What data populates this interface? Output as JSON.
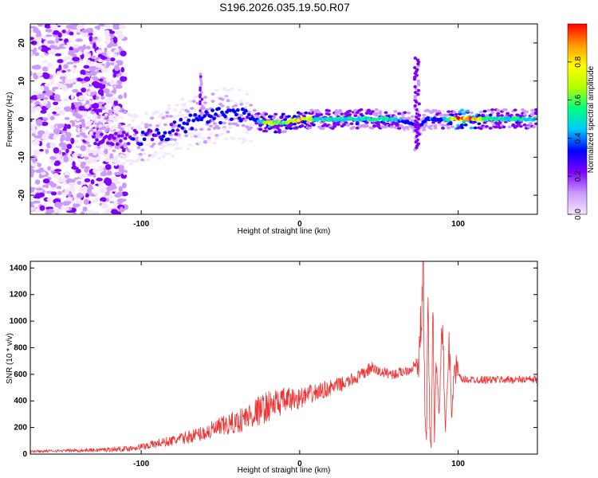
{
  "title": "S196.2026.035.19.50.R07",
  "chart_data": [
    {
      "type": "heatmap",
      "xlabel": "Height of straight line (km)",
      "ylabel": "Frequency (Hz)",
      "xlim": [
        -170,
        150
      ],
      "ylim": [
        -25,
        25
      ],
      "xticks": [
        -100,
        0,
        100
      ],
      "yticks": [
        -20,
        -10,
        0,
        10,
        20
      ],
      "colorbar": {
        "label": "Normalized spectral amplitude",
        "range": [
          0,
          1
        ],
        "ticks": [
          0.0,
          0.2,
          0.4,
          0.6,
          0.8
        ],
        "tick_labels": [
          "0.0",
          "0.2",
          "0.4",
          "0.6",
          "0.8"
        ],
        "colormap": [
          "#f4e6ff",
          "#cc99ff",
          "#7f00ff",
          "#0000ff",
          "#00c8ff",
          "#00ff80",
          "#b4ff00",
          "#ffff00",
          "#ff9900",
          "#ff0000"
        ]
      },
      "ridge": {
        "x": [
          -125,
          -110,
          -100,
          -90,
          -80,
          -70,
          -60,
          -50,
          -40,
          -30,
          -20,
          -10,
          0,
          10,
          20,
          30,
          40,
          50,
          60,
          70,
          75,
          80,
          90,
          100,
          110,
          120,
          130,
          140,
          150
        ],
        "freq": [
          -5,
          -5,
          -5,
          -4,
          -3,
          -1,
          0,
          1,
          1,
          0,
          -1,
          -1,
          0,
          0,
          0,
          0,
          0,
          0,
          0,
          -1,
          -2,
          0,
          0,
          0,
          0,
          0,
          0,
          0,
          0
        ],
        "amplitude": [
          0.25,
          0.25,
          0.3,
          0.3,
          0.3,
          0.35,
          0.35,
          0.35,
          0.35,
          0.3,
          0.75,
          0.6,
          0.85,
          0.5,
          0.5,
          0.5,
          0.55,
          0.55,
          0.5,
          0.3,
          0.25,
          0.35,
          0.4,
          0.9,
          0.9,
          0.55,
          0.5,
          0.55,
          0.5
        ]
      }
    },
    {
      "type": "line",
      "xlabel": "Height of straight line (km)",
      "ylabel": "SNR (10 * v/v)",
      "xlim": [
        -170,
        150
      ],
      "ylim": [
        0,
        1450
      ],
      "xticks": [
        -100,
        0,
        100
      ],
      "yticks": [
        0,
        200,
        400,
        600,
        800,
        1000,
        1200,
        1400
      ],
      "color": "#ee3333",
      "x": [
        -170,
        -150,
        -130,
        -110,
        -100,
        -90,
        -80,
        -70,
        -60,
        -50,
        -40,
        -30,
        -20,
        -10,
        0,
        10,
        20,
        30,
        40,
        45,
        50,
        60,
        70,
        75,
        76,
        77,
        78,
        79,
        80,
        81,
        82,
        83,
        84,
        85,
        86,
        88,
        90,
        92,
        94,
        96,
        98,
        100,
        102,
        110,
        120,
        130,
        140,
        150
      ],
      "series": [
        {
          "values": [
            20,
            25,
            30,
            40,
            55,
            80,
            100,
            130,
            160,
            200,
            240,
            300,
            360,
            400,
            420,
            460,
            500,
            540,
            600,
            650,
            620,
            600,
            640,
            700,
            900,
            1100,
            1450,
            300,
            80,
            1200,
            200,
            60,
            1250,
            100,
            700,
            300,
            1000,
            150,
            900,
            300,
            700,
            600,
            560,
            560,
            560,
            560,
            560,
            560
          ],
          "spread": [
            10,
            10,
            15,
            20,
            25,
            35,
            40,
            50,
            60,
            80,
            90,
            110,
            120,
            100,
            80,
            70,
            60,
            50,
            50,
            50,
            40,
            40,
            40,
            40,
            30,
            30,
            20,
            20,
            20,
            20,
            20,
            20,
            20,
            20,
            20,
            20,
            20,
            20,
            20,
            20,
            20,
            20,
            30,
            30,
            30,
            30,
            30,
            30
          ]
        }
      ]
    }
  ]
}
